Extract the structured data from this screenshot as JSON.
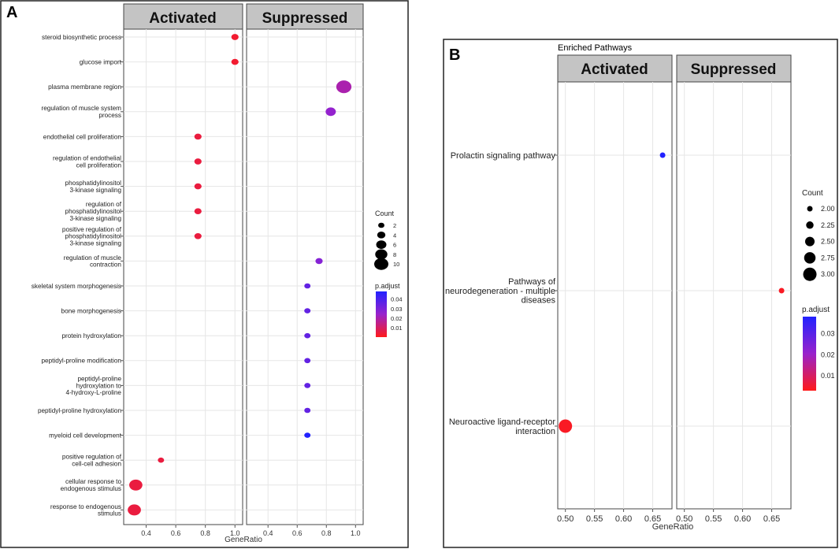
{
  "chart_data": [
    {
      "panel_label": "A",
      "type": "scatter",
      "title": "",
      "xlabel": "GeneRatio",
      "xlim": [
        0.28,
        1.02
      ],
      "xticks": [
        0.4,
        0.6,
        0.8,
        1.0
      ],
      "xtick_labels": [
        "0.4",
        "0.6",
        "0.8",
        "1.0"
      ],
      "facets": [
        "Activated",
        "Suppressed"
      ],
      "terms": [
        [
          "steroid biosynthetic process"
        ],
        [
          "glucose import"
        ],
        [
          "plasma membrane region"
        ],
        [
          "regulation of muscle system",
          "process"
        ],
        [
          "endothelial cell proliferation"
        ],
        [
          "regulation of endothelial",
          "cell proliferation"
        ],
        [
          "phosphatidylinositol",
          "3-kinase signaling"
        ],
        [
          "regulation of",
          "phosphatidylinositol",
          "3-kinase signaling"
        ],
        [
          "positive regulation of",
          "phosphatidylinositol",
          "3-kinase signaling"
        ],
        [
          "regulation of muscle",
          "contraction"
        ],
        [
          "skeletal system morphogenesis"
        ],
        [
          "bone morphogenesis"
        ],
        [
          "protein hydroxylation"
        ],
        [
          "peptidyl-proline modification"
        ],
        [
          "peptidyl-proline",
          "hydroxylation to",
          "4-hydroxy-L-proline"
        ],
        [
          "peptidyl-proline hydroxylation"
        ],
        [
          "myeloid cell development"
        ],
        [
          "positive regulation of",
          "cell-cell adhesion"
        ],
        [
          "cellular response to",
          "endogenous stimulus"
        ],
        [
          "response to endogenous",
          "stimulus"
        ]
      ],
      "points": [
        {
          "term": 0,
          "facet": "Activated",
          "x": 1.0,
          "count": 3,
          "padj": 0.003
        },
        {
          "term": 1,
          "facet": "Activated",
          "x": 1.0,
          "count": 3,
          "padj": 0.003
        },
        {
          "term": 2,
          "facet": "Suppressed",
          "x": 0.92,
          "count": 11,
          "padj": 0.02
        },
        {
          "term": 3,
          "facet": "Suppressed",
          "x": 0.83,
          "count": 6,
          "padj": 0.025
        },
        {
          "term": 4,
          "facet": "Activated",
          "x": 0.75,
          "count": 3,
          "padj": 0.005
        },
        {
          "term": 5,
          "facet": "Activated",
          "x": 0.75,
          "count": 3,
          "padj": 0.005
        },
        {
          "term": 6,
          "facet": "Activated",
          "x": 0.75,
          "count": 3,
          "padj": 0.005
        },
        {
          "term": 7,
          "facet": "Activated",
          "x": 0.75,
          "count": 3,
          "padj": 0.005
        },
        {
          "term": 8,
          "facet": "Activated",
          "x": 0.75,
          "count": 3,
          "padj": 0.005
        },
        {
          "term": 9,
          "facet": "Suppressed",
          "x": 0.75,
          "count": 3,
          "padj": 0.028
        },
        {
          "term": 10,
          "facet": "Suppressed",
          "x": 0.67,
          "count": 2,
          "padj": 0.035
        },
        {
          "term": 11,
          "facet": "Suppressed",
          "x": 0.67,
          "count": 2,
          "padj": 0.035
        },
        {
          "term": 12,
          "facet": "Suppressed",
          "x": 0.67,
          "count": 2,
          "padj": 0.035
        },
        {
          "term": 13,
          "facet": "Suppressed",
          "x": 0.67,
          "count": 2,
          "padj": 0.035
        },
        {
          "term": 14,
          "facet": "Suppressed",
          "x": 0.67,
          "count": 2,
          "padj": 0.035
        },
        {
          "term": 15,
          "facet": "Suppressed",
          "x": 0.67,
          "count": 2,
          "padj": 0.035
        },
        {
          "term": 16,
          "facet": "Suppressed",
          "x": 0.67,
          "count": 2,
          "padj": 0.048
        },
        {
          "term": 17,
          "facet": "Activated",
          "x": 0.5,
          "count": 2,
          "padj": 0.005
        },
        {
          "term": 18,
          "facet": "Activated",
          "x": 0.33,
          "count": 9,
          "padj": 0.005
        },
        {
          "term": 19,
          "facet": "Activated",
          "x": 0.32,
          "count": 9,
          "padj": 0.005
        }
      ],
      "legend_count": {
        "title": "Count",
        "values": [
          2,
          4,
          6,
          8,
          10
        ],
        "labels": [
          "2",
          "4",
          "6",
          "8",
          "10"
        ]
      },
      "legend_padj": {
        "title": "p.adjust",
        "ticks": [
          0.04,
          0.03,
          0.02,
          0.01
        ],
        "labels": [
          "0.04",
          "0.03",
          "0.02",
          "0.01"
        ],
        "range": [
          0.0,
          0.048
        ]
      }
    },
    {
      "panel_label": "B",
      "type": "scatter",
      "title": "Enriched Pathways",
      "xlabel": "GeneRatio",
      "xlim": [
        0.495,
        0.675
      ],
      "xticks": [
        0.5,
        0.55,
        0.6,
        0.65
      ],
      "xtick_labels": [
        "0.50",
        "0.55",
        "0.60",
        "0.65"
      ],
      "facets": [
        "Activated",
        "Suppressed"
      ],
      "terms": [
        [
          "Prolactin signaling pathway"
        ],
        [
          "Pathways of",
          "neurodegeneration - multiple",
          "diseases"
        ],
        [
          "Neuroactive ligand-receptor",
          "interaction"
        ]
      ],
      "points": [
        {
          "term": 0,
          "facet": "Activated",
          "x": 0.667,
          "count": 2,
          "padj": 0.038
        },
        {
          "term": 1,
          "facet": "Suppressed",
          "x": 0.667,
          "count": 2,
          "padj": 0.004
        },
        {
          "term": 2,
          "facet": "Activated",
          "x": 0.5,
          "count": 3,
          "padj": 0.004
        }
      ],
      "legend_count": {
        "title": "Count",
        "values": [
          2.0,
          2.25,
          2.5,
          2.75,
          3.0
        ],
        "labels": [
          "2.00",
          "2.25",
          "2.50",
          "2.75",
          "3.00"
        ]
      },
      "legend_padj": {
        "title": "p.adjust",
        "ticks": [
          0.03,
          0.02,
          0.01
        ],
        "labels": [
          "0.03",
          "0.02",
          "0.01"
        ],
        "range": [
          0.003,
          0.038
        ]
      }
    }
  ]
}
